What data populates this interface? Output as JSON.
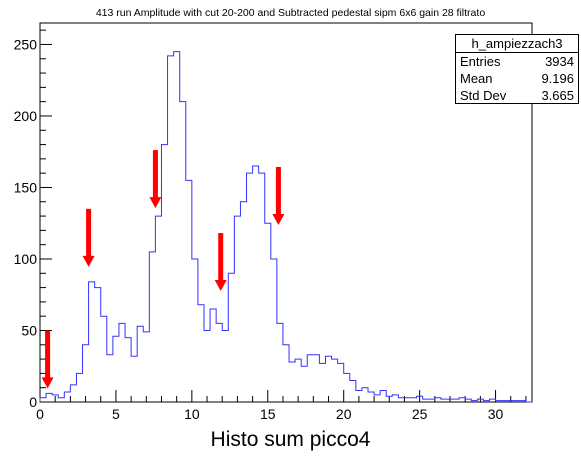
{
  "chart_data": {
    "type": "histogram",
    "title": "413 run Amplitude with cut 20-200 and Subtracted pedestal sipm 6x6 gain 28 filtrato",
    "xlabel": "Histo sum picco4",
    "ylabel": "",
    "xlim": [
      0,
      32.4
    ],
    "ylim": [
      0,
      265
    ],
    "xticks": [
      0,
      5,
      10,
      15,
      20,
      25,
      30
    ],
    "yticks": [
      0,
      50,
      100,
      150,
      200,
      250
    ],
    "bin_width": 0.4,
    "bin_start": 0,
    "values": [
      3,
      6,
      5,
      3,
      7,
      12,
      20,
      40,
      84,
      80,
      60,
      33,
      46,
      55,
      45,
      32,
      53,
      49,
      105,
      130,
      180,
      242,
      245,
      210,
      155,
      100,
      68,
      50,
      65,
      55,
      50,
      90,
      130,
      140,
      160,
      165,
      160,
      125,
      100,
      55,
      40,
      28,
      30,
      25,
      33,
      33,
      27,
      32,
      30,
      27,
      20,
      15,
      8,
      10,
      7,
      5,
      8,
      4,
      5,
      3,
      3,
      3,
      4,
      2,
      2,
      3,
      2,
      2,
      2,
      3,
      2,
      1,
      2,
      1,
      2,
      1,
      1,
      1,
      1,
      1,
      0
    ],
    "series": [
      {
        "values_ref": "values",
        "color": "#3333ff"
      }
    ],
    "grid": false,
    "arrows_x": [
      0.5,
      3.2,
      7.6,
      11.9,
      15.7
    ],
    "arrow_color": "#ff0000"
  },
  "stats": {
    "name": "h_ampiezzach3",
    "rows": [
      {
        "label": "Entries",
        "value": "3934"
      },
      {
        "label": "Mean",
        "value": "9.196"
      },
      {
        "label": "Std Dev",
        "value": "3.665"
      }
    ]
  }
}
